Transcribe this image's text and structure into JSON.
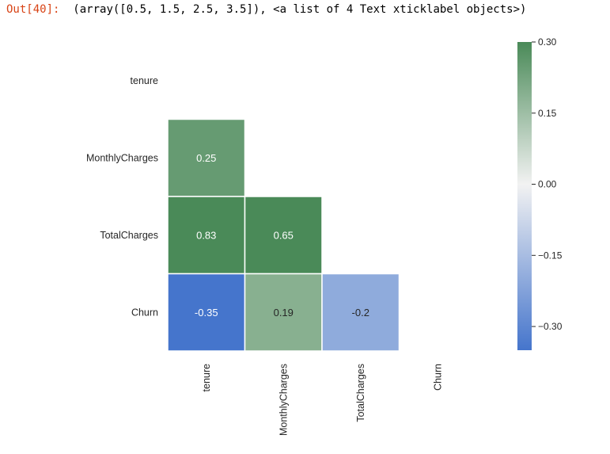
{
  "output": {
    "prompt": "Out[40]:",
    "text": "(array([0.5, 1.5, 2.5, 3.5]), <a list of 4 Text xticklabel objects>)"
  },
  "chart_data": {
    "type": "heatmap",
    "title": "",
    "rows": [
      "tenure",
      "MonthlyCharges",
      "TotalCharges",
      "Churn"
    ],
    "cols": [
      "tenure",
      "MonthlyCharges",
      "TotalCharges",
      "Churn"
    ],
    "mask": "upper-triangle-including-diagonal",
    "values": [
      [
        null,
        null,
        null,
        null
      ],
      [
        0.25,
        null,
        null,
        null
      ],
      [
        0.83,
        0.65,
        null,
        null
      ],
      [
        -0.35,
        0.19,
        -0.2,
        null
      ]
    ],
    "value_labels": [
      [
        null,
        null,
        null,
        null
      ],
      [
        "0.25",
        null,
        null,
        null
      ],
      [
        "0.83",
        "0.65",
        null,
        null
      ],
      [
        "-0.35",
        "0.19",
        "-0.2",
        null
      ]
    ],
    "colormap": {
      "type": "diverging",
      "vmin": -0.35,
      "vmax": 0.3,
      "center": 0,
      "negative_color": "#4575cc",
      "center_color": "#f2f2f2",
      "positive_color": "#4a8a58"
    },
    "colorbar": {
      "ticks": [
        0.3,
        0.15,
        0.0,
        -0.15,
        -0.3
      ],
      "tick_labels": [
        "0.30",
        "0.15",
        "0.00",
        "−0.15",
        "−0.30"
      ]
    },
    "grid": false,
    "cell_border_color": "#ffffff"
  }
}
